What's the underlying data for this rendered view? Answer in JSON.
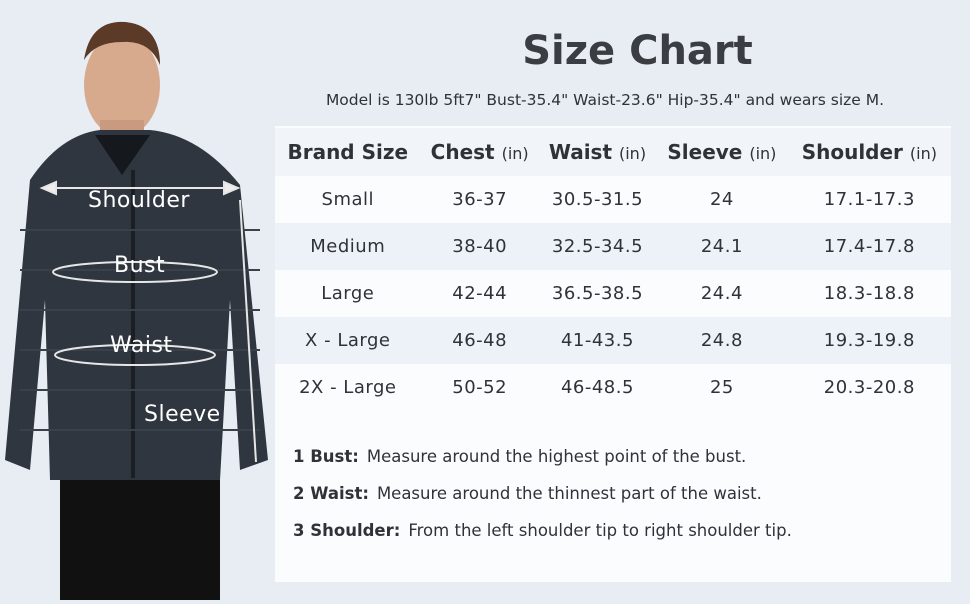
{
  "title": "Size Chart",
  "subtitle": "Model is 130lb  5ft7\"  Bust-35.4\"  Waist-23.6\"  Hip-35.4\" and wears size M.",
  "figure_labels": {
    "shoulder": "Shoulder",
    "bust": "Bust",
    "waist": "Waist",
    "sleeve": "Sleeve"
  },
  "table": {
    "headers": [
      {
        "name": "Brand Size",
        "unit": ""
      },
      {
        "name": "Chest",
        "unit": "(in)"
      },
      {
        "name": "Waist",
        "unit": "(in)"
      },
      {
        "name": "Sleeve",
        "unit": "(in)"
      },
      {
        "name": "Shoulder",
        "unit": "(in)"
      }
    ],
    "rows": [
      [
        "Small",
        "36-37",
        "30.5-31.5",
        "24",
        "17.1-17.3"
      ],
      [
        "Medium",
        "38-40",
        "32.5-34.5",
        "24.1",
        "17.4-17.8"
      ],
      [
        "Large",
        "42-44",
        "36.5-38.5",
        "24.4",
        "18.3-18.8"
      ],
      [
        "X - Large",
        "46-48",
        "41-43.5",
        "24.8",
        "19.3-19.8"
      ],
      [
        "2X - Large",
        "50-52",
        "46-48.5",
        "25",
        "20.3-20.8"
      ]
    ]
  },
  "notes": [
    {
      "key": "1 Bust:",
      "text": "Measure around the highest point of the bust."
    },
    {
      "key": "2 Waist:",
      "text": "Measure around the thinnest part of the waist."
    },
    {
      "key": "3 Shoulder:",
      "text": "From the left shoulder tip to right shoulder tip."
    }
  ],
  "colors": {
    "background": "#e8edf4",
    "jacket": "#30363f",
    "text": "#2f3237"
  }
}
